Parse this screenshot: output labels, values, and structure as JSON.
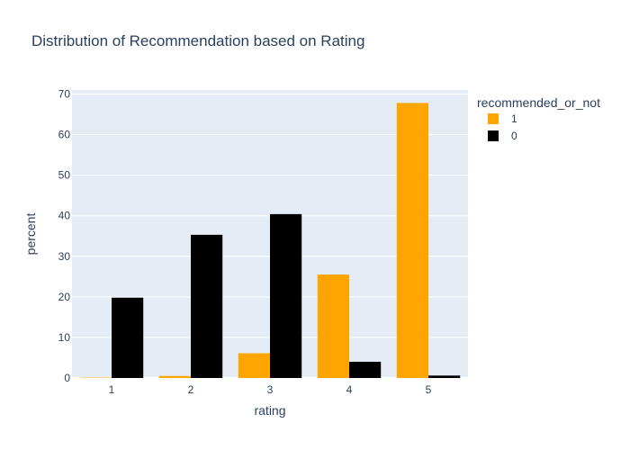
{
  "chart_data": {
    "type": "bar",
    "title": "Distribution of Recommendation based on Rating",
    "xlabel": "rating",
    "ylabel": "percent",
    "categories": [
      "1",
      "2",
      "3",
      "4",
      "5"
    ],
    "yticks": [
      "0",
      "10",
      "20",
      "30",
      "40",
      "50",
      "60",
      "70"
    ],
    "ylim": [
      0,
      71
    ],
    "grid": true,
    "barmode": "group",
    "legend": {
      "title": "recommended_or_not",
      "placement": "right"
    },
    "series": [
      {
        "name": "1",
        "color": "#FFA500",
        "values": [
          0.1,
          0.5,
          6.1,
          25.5,
          67.8
        ]
      },
      {
        "name": "0",
        "color": "#000000",
        "values": [
          19.8,
          35.3,
          40.4,
          4.0,
          0.6
        ]
      }
    ],
    "colors": {
      "plot_bg": "#E5ECF6",
      "grid": "#ffffff",
      "text": "#2a3f5f"
    }
  }
}
